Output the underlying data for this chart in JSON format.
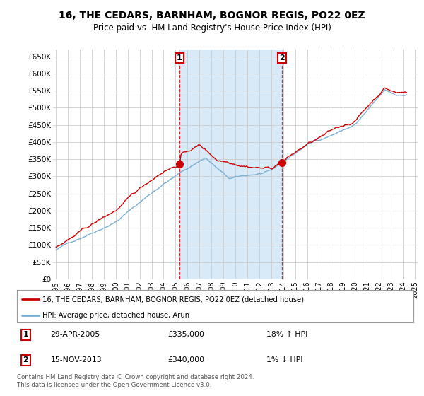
{
  "title": "16, THE CEDARS, BARNHAM, BOGNOR REGIS, PO22 0EZ",
  "subtitle": "Price paid vs. HM Land Registry's House Price Index (HPI)",
  "ylim": [
    0,
    670000
  ],
  "yticks": [
    0,
    50000,
    100000,
    150000,
    200000,
    250000,
    300000,
    350000,
    400000,
    450000,
    500000,
    550000,
    600000,
    650000
  ],
  "ytick_labels": [
    "£0",
    "£50K",
    "£100K",
    "£150K",
    "£200K",
    "£250K",
    "£300K",
    "£350K",
    "£400K",
    "£450K",
    "£500K",
    "£550K",
    "£600K",
    "£650K"
  ],
  "background_color": "#ffffff",
  "fig_bg_color": "#ffffff",
  "grid_color": "#cccccc",
  "red_line_color": "#cc0000",
  "blue_line_color": "#7ab0d4",
  "shade_color": "#d8eaf7",
  "marker1_x": 2005.32,
  "marker2_x": 2013.88,
  "marker1_y": 335000,
  "marker2_y": 340000,
  "legend_label_red": "16, THE CEDARS, BARNHAM, BOGNOR REGIS, PO22 0EZ (detached house)",
  "legend_label_blue": "HPI: Average price, detached house, Arun",
  "annotation1_label": "1",
  "annotation1_date": "29-APR-2005",
  "annotation1_price": "£335,000",
  "annotation1_hpi": "18% ↑ HPI",
  "annotation2_label": "2",
  "annotation2_date": "15-NOV-2013",
  "annotation2_price": "£340,000",
  "annotation2_hpi": "1% ↓ HPI",
  "footer_line1": "Contains HM Land Registry data © Crown copyright and database right 2024.",
  "footer_line2": "This data is licensed under the Open Government Licence v3.0.",
  "xlim_min": 1994.75,
  "xlim_max": 2025.25,
  "xticks_start": 1995,
  "xticks_end": 2025
}
